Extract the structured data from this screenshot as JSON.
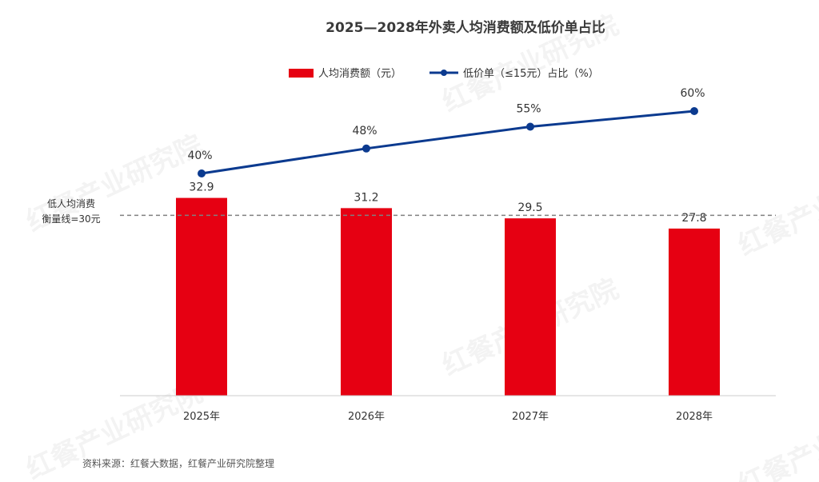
{
  "chart_data": {
    "type": "bar",
    "title": "2025—2028年外卖人均消费额及低价单占比",
    "categories": [
      "2025年",
      "2026年",
      "2027年",
      "2028年"
    ],
    "series": [
      {
        "name": "人均消费额（元）",
        "type": "bar",
        "color": "#e60012",
        "values": [
          32.9,
          31.2,
          29.5,
          27.8
        ],
        "labels": [
          "32.9",
          "31.2",
          "29.5",
          "27.8"
        ]
      },
      {
        "name": "低价单（≤15元）占比（%）",
        "type": "line",
        "color": "#0b3a8f",
        "values": [
          40,
          48,
          55,
          60
        ],
        "labels": [
          "40%",
          "48%",
          "55%",
          "60%"
        ]
      }
    ],
    "bar_axis_range": [
      0,
      40
    ],
    "line_axis_range": [
      0,
      80
    ],
    "reference_line": {
      "value": 30,
      "label_line1": "低人均消费",
      "label_line2": "衡量线=30元",
      "color": "#808080"
    },
    "legend_position": "top-center",
    "grid": false,
    "source": "资料来源：红餐大数据，红餐产业研究院整理",
    "watermark": "红餐产业研究院"
  }
}
